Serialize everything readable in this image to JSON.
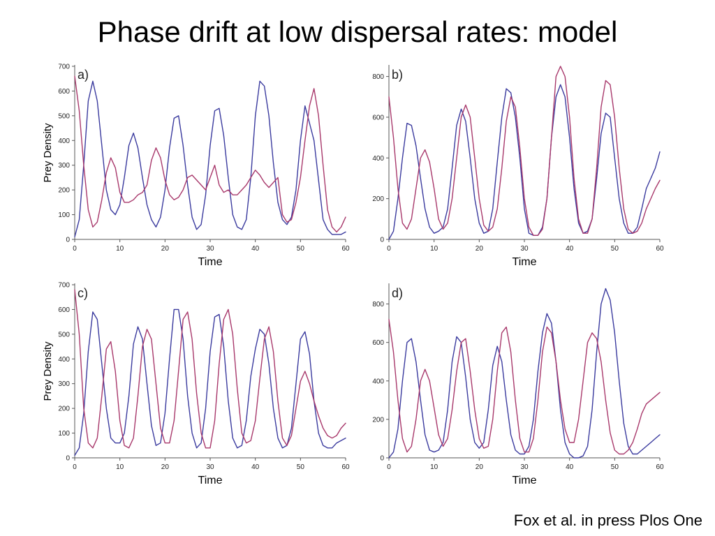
{
  "title": "Phase drift at low dispersal rates: model",
  "citation": "Fox et al. in press Plos One",
  "colors": {
    "blue": "#3a3a9e",
    "red": "#a8386b",
    "axis": "#555555"
  },
  "chart_data": [
    {
      "type": "line",
      "panel_label": "a)",
      "xlabel": "Time",
      "ylabel": "Prey Density",
      "xlim": [
        0,
        60
      ],
      "ylim": [
        0,
        700
      ],
      "xticks": [
        0,
        10,
        20,
        30,
        40,
        50,
        60
      ],
      "yticks": [
        0,
        100,
        200,
        300,
        400,
        500,
        600,
        700
      ],
      "series": [
        {
          "color": "#3a3a9e",
          "x": [
            0,
            1,
            2,
            3,
            4,
            5,
            6,
            7,
            8,
            9,
            10,
            11,
            12,
            13,
            14,
            15,
            16,
            17,
            18,
            19,
            20,
            21,
            22,
            23,
            24,
            25,
            26,
            27,
            28,
            29,
            30,
            31,
            32,
            33,
            34,
            35,
            36,
            37,
            38,
            39,
            40,
            41,
            42,
            43,
            44,
            45,
            46,
            47,
            48,
            49,
            50,
            51,
            52,
            53,
            54,
            55,
            56,
            57,
            58,
            59,
            60
          ],
          "y": [
            10,
            80,
            300,
            560,
            640,
            560,
            380,
            200,
            120,
            100,
            140,
            250,
            380,
            430,
            370,
            250,
            140,
            80,
            50,
            90,
            200,
            370,
            490,
            500,
            380,
            220,
            90,
            40,
            60,
            180,
            380,
            520,
            530,
            420,
            250,
            100,
            50,
            40,
            80,
            250,
            500,
            640,
            620,
            500,
            310,
            150,
            80,
            60,
            90,
            200,
            400,
            540,
            470,
            400,
            240,
            80,
            40,
            20,
            20,
            20,
            30
          ]
        },
        {
          "color": "#a8386b",
          "x": [
            0,
            1,
            2,
            3,
            4,
            5,
            6,
            7,
            8,
            9,
            10,
            11,
            12,
            13,
            14,
            15,
            16,
            17,
            18,
            19,
            20,
            21,
            22,
            23,
            24,
            25,
            26,
            27,
            28,
            29,
            30,
            31,
            32,
            33,
            34,
            35,
            36,
            37,
            38,
            39,
            40,
            41,
            42,
            43,
            44,
            45,
            46,
            47,
            48,
            49,
            50,
            51,
            52,
            53,
            54,
            55,
            56,
            57,
            58,
            59,
            60
          ],
          "y": [
            660,
            520,
            300,
            120,
            50,
            70,
            160,
            270,
            330,
            290,
            190,
            150,
            150,
            160,
            180,
            190,
            220,
            320,
            370,
            330,
            240,
            180,
            160,
            170,
            200,
            250,
            260,
            240,
            220,
            200,
            250,
            300,
            220,
            190,
            200,
            180,
            180,
            200,
            220,
            250,
            280,
            260,
            230,
            210,
            230,
            250,
            100,
            70,
            80,
            150,
            250,
            400,
            540,
            610,
            500,
            300,
            120,
            50,
            30,
            50,
            90
          ]
        }
      ]
    },
    {
      "type": "line",
      "panel_label": "b)",
      "xlabel": "Time",
      "ylabel": "",
      "xlim": [
        0,
        60
      ],
      "ylim": [
        0,
        850
      ],
      "xticks": [
        0,
        10,
        20,
        30,
        40,
        50,
        60
      ],
      "yticks": [
        0,
        200,
        400,
        600,
        800
      ],
      "series": [
        {
          "color": "#3a3a9e",
          "x": [
            0,
            1,
            2,
            3,
            4,
            5,
            6,
            7,
            8,
            9,
            10,
            11,
            12,
            13,
            14,
            15,
            16,
            17,
            18,
            19,
            20,
            21,
            22,
            23,
            24,
            25,
            26,
            27,
            28,
            29,
            30,
            31,
            32,
            33,
            34,
            35,
            36,
            37,
            38,
            39,
            40,
            41,
            42,
            43,
            44,
            45,
            46,
            47,
            48,
            49,
            50,
            51,
            52,
            53,
            54,
            55,
            56,
            57,
            58,
            59,
            60
          ],
          "y": [
            0,
            40,
            200,
            400,
            570,
            560,
            460,
            300,
            150,
            60,
            30,
            40,
            60,
            150,
            350,
            560,
            640,
            580,
            400,
            200,
            80,
            30,
            40,
            150,
            380,
            600,
            740,
            720,
            600,
            400,
            150,
            30,
            20,
            20,
            60,
            200,
            500,
            700,
            760,
            700,
            500,
            250,
            80,
            30,
            40,
            100,
            300,
            520,
            620,
            600,
            400,
            200,
            80,
            30,
            30,
            60,
            150,
            250,
            300,
            350,
            430
          ]
        },
        {
          "color": "#a8386b",
          "x": [
            0,
            1,
            2,
            3,
            4,
            5,
            6,
            7,
            8,
            9,
            10,
            11,
            12,
            13,
            14,
            15,
            16,
            17,
            18,
            19,
            20,
            21,
            22,
            23,
            24,
            25,
            26,
            27,
            28,
            29,
            30,
            31,
            32,
            33,
            34,
            35,
            36,
            37,
            38,
            39,
            40,
            41,
            42,
            43,
            44,
            45,
            46,
            47,
            48,
            49,
            50,
            51,
            52,
            53,
            54,
            55,
            56,
            57,
            58,
            59,
            60
          ],
          "y": [
            700,
            500,
            250,
            80,
            50,
            100,
            250,
            400,
            440,
            380,
            250,
            100,
            50,
            80,
            200,
            400,
            600,
            660,
            600,
            400,
            200,
            70,
            40,
            60,
            150,
            350,
            580,
            700,
            650,
            450,
            200,
            60,
            20,
            20,
            50,
            200,
            500,
            800,
            850,
            800,
            600,
            300,
            100,
            30,
            30,
            100,
            350,
            650,
            780,
            760,
            600,
            350,
            150,
            50,
            30,
            40,
            80,
            150,
            200,
            250,
            290
          ]
        }
      ]
    },
    {
      "type": "line",
      "panel_label": "c)",
      "xlabel": "Time",
      "ylabel": "Prey Density",
      "xlim": [
        0,
        60
      ],
      "ylim": [
        0,
        700
      ],
      "xticks": [
        0,
        10,
        20,
        30,
        40,
        50,
        60
      ],
      "yticks": [
        0,
        100,
        200,
        300,
        400,
        500,
        600,
        700
      ],
      "series": [
        {
          "color": "#3a3a9e",
          "x": [
            0,
            1,
            2,
            3,
            4,
            5,
            6,
            7,
            8,
            9,
            10,
            11,
            12,
            13,
            14,
            15,
            16,
            17,
            18,
            19,
            20,
            21,
            22,
            23,
            24,
            25,
            26,
            27,
            28,
            29,
            30,
            31,
            32,
            33,
            34,
            35,
            36,
            37,
            38,
            39,
            40,
            41,
            42,
            43,
            44,
            45,
            46,
            47,
            48,
            49,
            50,
            51,
            52,
            53,
            54,
            55,
            56,
            57,
            58,
            59,
            60
          ],
          "y": [
            10,
            40,
            180,
            430,
            590,
            560,
            380,
            200,
            80,
            60,
            60,
            100,
            250,
            460,
            530,
            480,
            300,
            130,
            50,
            60,
            180,
            400,
            600,
            600,
            480,
            250,
            100,
            40,
            60,
            200,
            430,
            570,
            580,
            450,
            230,
            80,
            40,
            50,
            150,
            330,
            440,
            520,
            500,
            380,
            200,
            80,
            40,
            50,
            120,
            300,
            480,
            510,
            420,
            230,
            100,
            50,
            40,
            40,
            60,
            70,
            80
          ]
        },
        {
          "color": "#a8386b",
          "x": [
            0,
            1,
            2,
            3,
            4,
            5,
            6,
            7,
            8,
            9,
            10,
            11,
            12,
            13,
            14,
            15,
            16,
            17,
            18,
            19,
            20,
            21,
            22,
            23,
            24,
            25,
            26,
            27,
            28,
            29,
            30,
            31,
            32,
            33,
            34,
            35,
            36,
            37,
            38,
            39,
            40,
            41,
            42,
            43,
            44,
            45,
            46,
            47,
            48,
            49,
            50,
            51,
            52,
            53,
            54,
            55,
            56,
            57,
            58,
            59,
            60
          ],
          "y": [
            680,
            500,
            200,
            60,
            40,
            80,
            250,
            440,
            470,
            350,
            150,
            50,
            40,
            80,
            250,
            450,
            520,
            480,
            300,
            120,
            60,
            60,
            150,
            350,
            560,
            590,
            480,
            260,
            100,
            40,
            40,
            150,
            380,
            560,
            600,
            500,
            280,
            100,
            60,
            70,
            150,
            320,
            480,
            530,
            430,
            230,
            80,
            50,
            90,
            200,
            310,
            350,
            300,
            230,
            170,
            120,
            90,
            80,
            90,
            120,
            140
          ]
        }
      ]
    },
    {
      "type": "line",
      "panel_label": "d)",
      "xlabel": "Time",
      "ylabel": "",
      "xlim": [
        0,
        60
      ],
      "ylim": [
        0,
        900
      ],
      "xticks": [
        0,
        10,
        20,
        30,
        40,
        50,
        60
      ],
      "yticks": [
        0,
        200,
        400,
        600,
        800
      ],
      "series": [
        {
          "color": "#3a3a9e",
          "x": [
            0,
            1,
            2,
            3,
            4,
            5,
            6,
            7,
            8,
            9,
            10,
            11,
            12,
            13,
            14,
            15,
            16,
            17,
            18,
            19,
            20,
            21,
            22,
            23,
            24,
            25,
            26,
            27,
            28,
            29,
            30,
            31,
            32,
            33,
            34,
            35,
            36,
            37,
            38,
            39,
            40,
            41,
            42,
            43,
            44,
            45,
            46,
            47,
            48,
            49,
            50,
            51,
            52,
            53,
            54,
            55,
            56,
            57,
            58,
            59,
            60
          ],
          "y": [
            0,
            30,
            150,
            400,
            600,
            620,
            500,
            300,
            120,
            40,
            30,
            40,
            80,
            250,
            500,
            630,
            600,
            420,
            200,
            80,
            50,
            80,
            250,
            480,
            580,
            500,
            300,
            120,
            40,
            20,
            20,
            60,
            200,
            450,
            650,
            750,
            700,
            500,
            250,
            80,
            20,
            0,
            0,
            10,
            60,
            250,
            550,
            800,
            880,
            820,
            650,
            400,
            180,
            60,
            20,
            20,
            40,
            60,
            80,
            100,
            120
          ]
        },
        {
          "color": "#a8386b",
          "x": [
            0,
            1,
            2,
            3,
            4,
            5,
            6,
            7,
            8,
            9,
            10,
            11,
            12,
            13,
            14,
            15,
            16,
            17,
            18,
            19,
            20,
            21,
            22,
            23,
            24,
            25,
            26,
            27,
            28,
            29,
            30,
            31,
            32,
            33,
            34,
            35,
            36,
            37,
            38,
            39,
            40,
            41,
            42,
            43,
            44,
            45,
            46,
            47,
            48,
            49,
            50,
            51,
            52,
            53,
            54,
            55,
            56,
            57,
            58,
            59,
            60
          ],
          "y": [
            720,
            550,
            300,
            100,
            30,
            60,
            200,
            400,
            460,
            400,
            260,
            120,
            60,
            100,
            250,
            450,
            600,
            620,
            450,
            250,
            100,
            50,
            60,
            200,
            450,
            650,
            680,
            550,
            300,
            100,
            30,
            30,
            100,
            300,
            550,
            680,
            650,
            500,
            300,
            150,
            80,
            80,
            200,
            400,
            600,
            650,
            620,
            500,
            300,
            130,
            40,
            20,
            20,
            40,
            80,
            150,
            230,
            280,
            300,
            320,
            340
          ]
        }
      ]
    }
  ]
}
